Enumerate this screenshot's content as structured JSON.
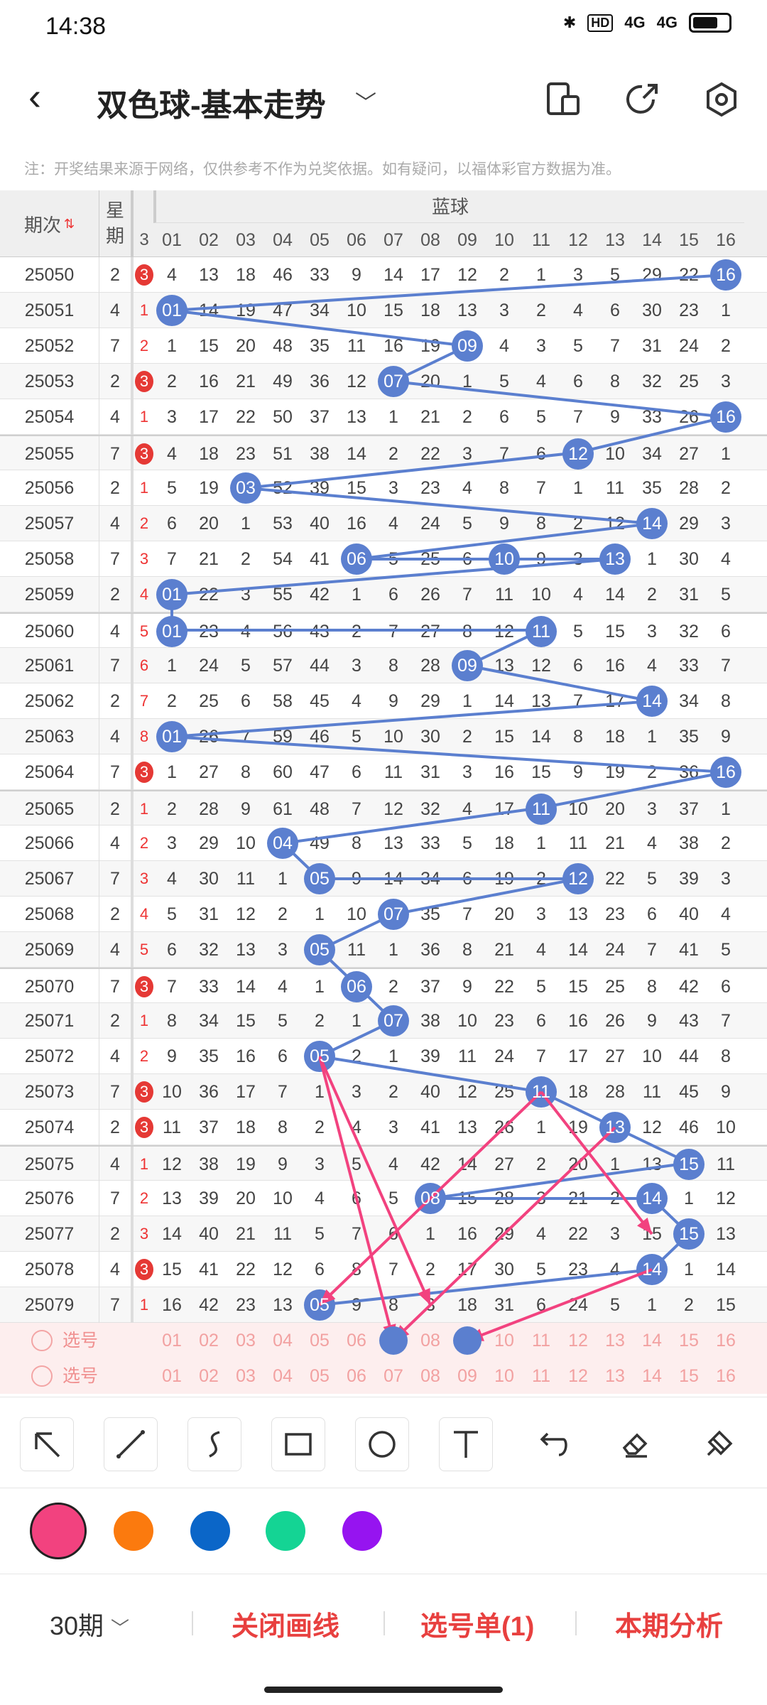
{
  "status": {
    "time": "14:38",
    "signal1": "4G",
    "signal2": "4G",
    "hd": "HD"
  },
  "header": {
    "title": "双色球-基本走势"
  },
  "note": "注：开奖结果来源于网络，仅供参考不作为兑奖依据。如有疑问，以福体彩官方数据为准。",
  "table": {
    "col_period": "期次",
    "col_week": "星期",
    "col_red_tail": "3",
    "blue_header": "蓝球",
    "blue_nums": [
      "01",
      "02",
      "03",
      "04",
      "05",
      "06",
      "07",
      "08",
      "09",
      "10",
      "11",
      "12",
      "13",
      "14",
      "15",
      "16"
    ],
    "rows": [
      {
        "period": "25050",
        "week": "2",
        "r": "3",
        "rball": true,
        "cells": [
          "4",
          "13",
          "18",
          "46",
          "33",
          "9",
          "14",
          "17",
          "12",
          "2",
          "1",
          "3",
          "5",
          "29",
          "22",
          "16"
        ]
      },
      {
        "period": "25051",
        "week": "4",
        "r": "1",
        "rball": false,
        "cells": [
          "01",
          "14",
          "19",
          "47",
          "34",
          "10",
          "15",
          "18",
          "13",
          "3",
          "2",
          "4",
          "6",
          "30",
          "23",
          "1"
        ]
      },
      {
        "period": "25052",
        "week": "7",
        "r": "2",
        "rball": false,
        "cells": [
          "1",
          "15",
          "20",
          "48",
          "35",
          "11",
          "16",
          "19",
          "09",
          "4",
          "3",
          "5",
          "7",
          "31",
          "24",
          "2"
        ]
      },
      {
        "period": "25053",
        "week": "2",
        "r": "3",
        "rball": true,
        "cells": [
          "2",
          "16",
          "21",
          "49",
          "36",
          "12",
          "07",
          "20",
          "1",
          "5",
          "4",
          "6",
          "8",
          "32",
          "25",
          "3"
        ]
      },
      {
        "period": "25054",
        "week": "4",
        "r": "1",
        "rball": false,
        "cells": [
          "3",
          "17",
          "22",
          "50",
          "37",
          "13",
          "1",
          "21",
          "2",
          "6",
          "5",
          "7",
          "9",
          "33",
          "26",
          "16"
        ]
      },
      {
        "period": "25055",
        "week": "7",
        "r": "3",
        "rball": true,
        "cells": [
          "4",
          "18",
          "23",
          "51",
          "38",
          "14",
          "2",
          "22",
          "3",
          "7",
          "6",
          "12",
          "10",
          "34",
          "27",
          "1"
        ]
      },
      {
        "period": "25056",
        "week": "2",
        "r": "1",
        "rball": false,
        "cells": [
          "5",
          "19",
          "03",
          "52",
          "39",
          "15",
          "3",
          "23",
          "4",
          "8",
          "7",
          "1",
          "11",
          "35",
          "28",
          "2"
        ]
      },
      {
        "period": "25057",
        "week": "4",
        "r": "2",
        "rball": false,
        "cells": [
          "6",
          "20",
          "1",
          "53",
          "40",
          "16",
          "4",
          "24",
          "5",
          "9",
          "8",
          "2",
          "12",
          "14",
          "29",
          "3"
        ]
      },
      {
        "period": "25058",
        "week": "7",
        "r": "3",
        "rball": false,
        "cells": [
          "7",
          "21",
          "2",
          "54",
          "41",
          "06",
          "5",
          "25",
          "6",
          "10",
          "9",
          "3",
          "13",
          "1",
          "30",
          "4"
        ]
      },
      {
        "period": "25059",
        "week": "2",
        "r": "4",
        "rball": false,
        "cells": [
          "01",
          "22",
          "3",
          "55",
          "42",
          "1",
          "6",
          "26",
          "7",
          "11",
          "10",
          "4",
          "14",
          "2",
          "31",
          "5"
        ]
      },
      {
        "period": "25060",
        "week": "4",
        "r": "5",
        "rball": false,
        "cells": [
          "01",
          "23",
          "4",
          "56",
          "43",
          "2",
          "7",
          "27",
          "8",
          "12",
          "11",
          "5",
          "15",
          "3",
          "32",
          "6"
        ]
      },
      {
        "period": "25061",
        "week": "7",
        "r": "6",
        "rball": false,
        "cells": [
          "1",
          "24",
          "5",
          "57",
          "44",
          "3",
          "8",
          "28",
          "09",
          "13",
          "12",
          "6",
          "16",
          "4",
          "33",
          "7"
        ]
      },
      {
        "period": "25062",
        "week": "2",
        "r": "7",
        "rball": false,
        "cells": [
          "2",
          "25",
          "6",
          "58",
          "45",
          "4",
          "9",
          "29",
          "1",
          "14",
          "13",
          "7",
          "17",
          "14",
          "34",
          "8"
        ]
      },
      {
        "period": "25063",
        "week": "4",
        "r": "8",
        "rball": false,
        "cells": [
          "01",
          "26",
          "7",
          "59",
          "46",
          "5",
          "10",
          "30",
          "2",
          "15",
          "14",
          "8",
          "18",
          "1",
          "35",
          "9"
        ]
      },
      {
        "period": "25064",
        "week": "7",
        "r": "3",
        "rball": true,
        "cells": [
          "1",
          "27",
          "8",
          "60",
          "47",
          "6",
          "11",
          "31",
          "3",
          "16",
          "15",
          "9",
          "19",
          "2",
          "36",
          "16"
        ]
      },
      {
        "period": "25065",
        "week": "2",
        "r": "1",
        "rball": false,
        "cells": [
          "2",
          "28",
          "9",
          "61",
          "48",
          "7",
          "12",
          "32",
          "4",
          "17",
          "11",
          "10",
          "20",
          "3",
          "37",
          "1"
        ]
      },
      {
        "period": "25066",
        "week": "4",
        "r": "2",
        "rball": false,
        "cells": [
          "3",
          "29",
          "10",
          "04",
          "49",
          "8",
          "13",
          "33",
          "5",
          "18",
          "1",
          "11",
          "21",
          "4",
          "38",
          "2"
        ]
      },
      {
        "period": "25067",
        "week": "7",
        "r": "3",
        "rball": false,
        "cells": [
          "4",
          "30",
          "11",
          "1",
          "05",
          "9",
          "14",
          "34",
          "6",
          "19",
          "2",
          "12",
          "22",
          "5",
          "39",
          "3"
        ]
      },
      {
        "period": "25068",
        "week": "2",
        "r": "4",
        "rball": false,
        "cells": [
          "5",
          "31",
          "12",
          "2",
          "1",
          "10",
          "07",
          "35",
          "7",
          "20",
          "3",
          "13",
          "23",
          "6",
          "40",
          "4"
        ]
      },
      {
        "period": "25069",
        "week": "4",
        "r": "5",
        "rball": false,
        "cells": [
          "6",
          "32",
          "13",
          "3",
          "05",
          "11",
          "1",
          "36",
          "8",
          "21",
          "4",
          "14",
          "24",
          "7",
          "41",
          "5"
        ]
      },
      {
        "period": "25070",
        "week": "7",
        "r": "3",
        "rball": true,
        "cells": [
          "7",
          "33",
          "14",
          "4",
          "1",
          "06",
          "2",
          "37",
          "9",
          "22",
          "5",
          "15",
          "25",
          "8",
          "42",
          "6"
        ]
      },
      {
        "period": "25071",
        "week": "2",
        "r": "1",
        "rball": false,
        "cells": [
          "8",
          "34",
          "15",
          "5",
          "2",
          "1",
          "07",
          "38",
          "10",
          "23",
          "6",
          "16",
          "26",
          "9",
          "43",
          "7"
        ]
      },
      {
        "period": "25072",
        "week": "4",
        "r": "2",
        "rball": false,
        "cells": [
          "9",
          "35",
          "16",
          "6",
          "05",
          "2",
          "1",
          "39",
          "11",
          "24",
          "7",
          "17",
          "27",
          "10",
          "44",
          "8"
        ]
      },
      {
        "period": "25073",
        "week": "7",
        "r": "3",
        "rball": true,
        "cells": [
          "10",
          "36",
          "17",
          "7",
          "1",
          "3",
          "2",
          "40",
          "12",
          "25",
          "11",
          "18",
          "28",
          "11",
          "45",
          "9"
        ]
      },
      {
        "period": "25074",
        "week": "2",
        "r": "3",
        "rball": true,
        "cells": [
          "11",
          "37",
          "18",
          "8",
          "2",
          "4",
          "3",
          "41",
          "13",
          "26",
          "1",
          "19",
          "13",
          "12",
          "46",
          "10"
        ]
      },
      {
        "period": "25075",
        "week": "4",
        "r": "1",
        "rball": false,
        "cells": [
          "12",
          "38",
          "19",
          "9",
          "3",
          "5",
          "4",
          "42",
          "14",
          "27",
          "2",
          "20",
          "1",
          "13",
          "15",
          "11"
        ]
      },
      {
        "period": "25076",
        "week": "7",
        "r": "2",
        "rball": false,
        "cells": [
          "13",
          "39",
          "20",
          "10",
          "4",
          "6",
          "5",
          "08",
          "15",
          "28",
          "3",
          "21",
          "2",
          "14",
          "1",
          "12"
        ]
      },
      {
        "period": "25077",
        "week": "2",
        "r": "3",
        "rball": false,
        "cells": [
          "14",
          "40",
          "21",
          "11",
          "5",
          "7",
          "6",
          "1",
          "16",
          "29",
          "4",
          "22",
          "3",
          "15",
          "15",
          "13"
        ]
      },
      {
        "period": "25078",
        "week": "4",
        "r": "3",
        "rball": true,
        "cells": [
          "15",
          "41",
          "22",
          "12",
          "6",
          "8",
          "7",
          "2",
          "17",
          "30",
          "5",
          "23",
          "4",
          "14",
          "1",
          "14"
        ]
      },
      {
        "period": "25079",
        "week": "7",
        "r": "1",
        "rball": false,
        "cells": [
          "16",
          "42",
          "23",
          "13",
          "05",
          "9",
          "8",
          "3",
          "18",
          "31",
          "6",
          "24",
          "5",
          "1",
          "2",
          "15"
        ]
      }
    ],
    "pick_label": "选号"
  },
  "toolbar": {
    "tools": [
      "arrow-tool",
      "line-tool",
      "curve-tool",
      "rect-tool",
      "circle-tool",
      "text-tool",
      "undo-tool",
      "eraser-tool",
      "clear-tool"
    ]
  },
  "colors": {
    "pink": "#f2427f",
    "orange": "#fb7a0e",
    "blue": "#0b66c8",
    "green": "#14d494",
    "purple": "#9614f0",
    "line": "#5b7fcf"
  },
  "bottom": {
    "period": "30期",
    "close": "关闭画线",
    "picks": "选号单(1)",
    "analysis": "本期分析"
  }
}
